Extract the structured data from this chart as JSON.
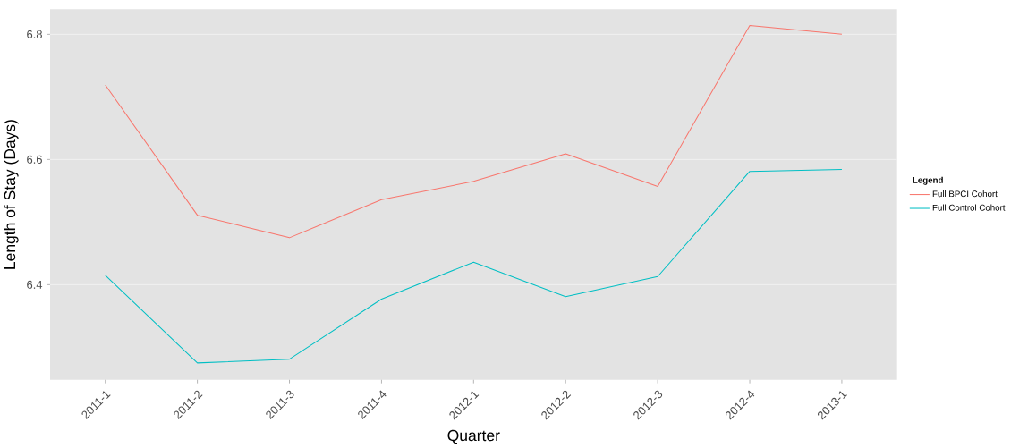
{
  "chart_data": {
    "type": "line",
    "xlabel": "Quarter",
    "ylabel": "Length of Stay (Days)",
    "legend_title": "Legend",
    "categories": [
      "2011-1",
      "2011-2",
      "2011-3",
      "2011-4",
      "2012-1",
      "2012-2",
      "2012-3",
      "2012-4",
      "2013-1"
    ],
    "series": [
      {
        "name": "Full BPCI Cohort",
        "color": "#f8766d",
        "values": [
          6.719,
          6.511,
          6.475,
          6.536,
          6.565,
          6.609,
          6.557,
          6.814,
          6.8
        ]
      },
      {
        "name": "Full Control Cohort",
        "color": "#00bfc4",
        "values": [
          6.415,
          6.275,
          6.281,
          6.377,
          6.436,
          6.381,
          6.413,
          6.581,
          6.584
        ]
      }
    ],
    "ylim": [
      6.248,
      6.84
    ],
    "yticks": [
      6.4,
      6.6,
      6.8
    ],
    "grid": "y",
    "legend": "right",
    "line_style": "solid",
    "marker": "none"
  }
}
